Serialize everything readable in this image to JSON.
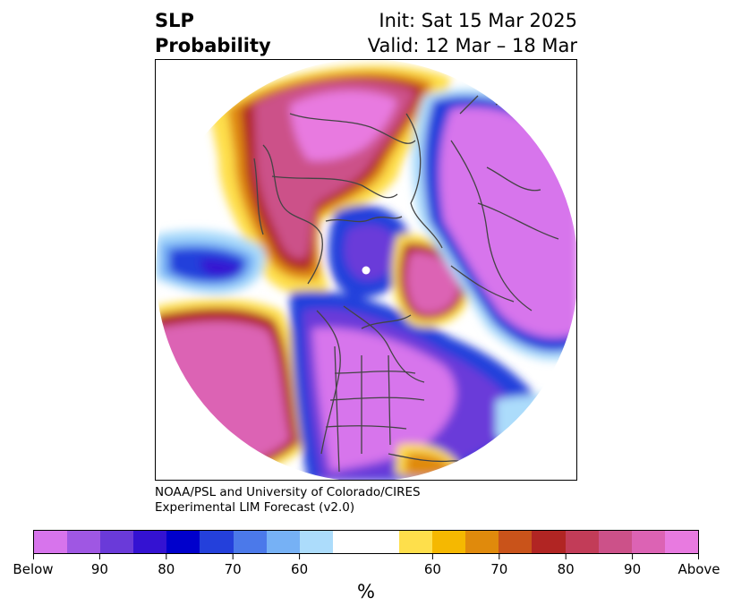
{
  "header": {
    "variable_line1": "SLP",
    "variable_line2": "Probability",
    "init_line": "Init: Sat 15 Mar 2025",
    "valid_line": "Valid: 12 Mar – 18 Mar"
  },
  "credit": {
    "line1": "NOAA/PSL and University of Colorado/CIRES",
    "line2": "Experimental LIM Forecast (v2.0)"
  },
  "colorbar": {
    "colors": [
      "#d774ec",
      "#9f57e3",
      "#6a3ad9",
      "#3412d2",
      "#0000cc",
      "#2440db",
      "#4b79ea",
      "#76b1f5",
      "#acdcfb",
      "#ffffff",
      "#ffffff",
      "#fedf4b",
      "#f5b801",
      "#e08a0c",
      "#c9531a",
      "#b12523",
      "#c23c58",
      "#cc5189",
      "#dc63b4",
      "#e87ae0"
    ],
    "tick_labels": [
      "Below",
      "90",
      "80",
      "70",
      "60",
      "60",
      "70",
      "80",
      "90",
      "Above"
    ],
    "unit_label": "%"
  },
  "map": {
    "projection": "north-polar-stereographic",
    "colors": {
      "below_strong": "#d774ec",
      "below_mid": "#6a3ad9",
      "below_deep": "#0000cc",
      "below_light": "#76b1f5",
      "below_faint": "#acdcfb",
      "above_faint": "#fedf4b",
      "above_low": "#e08a0c",
      "above_mid": "#b12523",
      "above_high": "#cc5189",
      "above_strong": "#e87ae0",
      "coastline": "#444444"
    }
  }
}
